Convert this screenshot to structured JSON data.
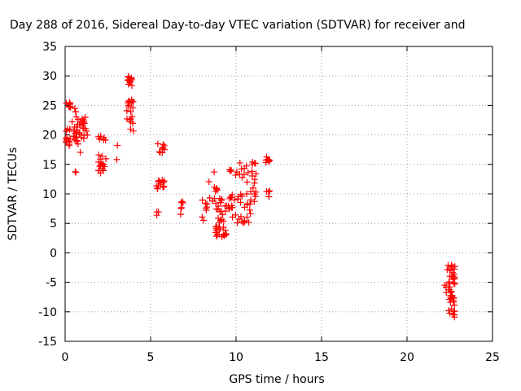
{
  "chart_data": {
    "type": "scatter",
    "title": "Day 288 of 2016, Sidereal Day-to-day VTEC variation (SDTVAR) for receiver and",
    "xlabel": "GPS time / hours",
    "ylabel": "SDTVAR / TECUs",
    "xlim": [
      0,
      25
    ],
    "ylim": [
      -15,
      35
    ],
    "x_ticks": [
      "0",
      "5",
      "10",
      "15",
      "20",
      "25"
    ],
    "y_ticks": [
      "-15",
      "-10",
      "-5",
      "0",
      "5",
      "10",
      "15",
      "20",
      "25",
      "30",
      "35"
    ],
    "grid": true,
    "marker": "plus",
    "series": [
      {
        "color": "#ff0000",
        "clusters": [
          {
            "x": [
              0.0,
              0.4
            ],
            "y": [
              24.5,
              25.5
            ],
            "n": 8
          },
          {
            "x": [
              0.0,
              0.3
            ],
            "y": [
              17.5,
              21.5
            ],
            "n": 14
          },
          {
            "x": [
              0.4,
              0.8
            ],
            "y": [
              19.0,
              24.8
            ],
            "n": 16
          },
          {
            "x": [
              0.5,
              0.7
            ],
            "y": [
              13.5,
              14.0
            ],
            "n": 2
          },
          {
            "x": [
              0.7,
              1.3
            ],
            "y": [
              17.0,
              23.0
            ],
            "n": 26
          },
          {
            "x": [
              1.9,
              2.4
            ],
            "y": [
              13.5,
              17.0
            ],
            "n": 16
          },
          {
            "x": [
              1.9,
              2.4
            ],
            "y": [
              18.8,
              19.8
            ],
            "n": 6
          },
          {
            "x": [
              3.0,
              3.1
            ],
            "y": [
              15.0,
              18.3
            ],
            "n": 2
          },
          {
            "x": [
              3.6,
              4.0
            ],
            "y": [
              28.3,
              30.3
            ],
            "n": 12
          },
          {
            "x": [
              3.6,
              4.0
            ],
            "y": [
              20.5,
              26.0
            ],
            "n": 20
          },
          {
            "x": [
              5.3,
              5.6
            ],
            "y": [
              6.3,
              7.0
            ],
            "n": 3
          },
          {
            "x": [
              5.3,
              5.9
            ],
            "y": [
              10.8,
              12.5
            ],
            "n": 14
          },
          {
            "x": [
              5.4,
              5.9
            ],
            "y": [
              16.8,
              18.5
            ],
            "n": 10
          },
          {
            "x": [
              6.7,
              6.9
            ],
            "y": [
              5.3,
              10.0
            ],
            "n": 6
          },
          {
            "x": [
              8.0,
              8.3
            ],
            "y": [
              5.5,
              9.0
            ],
            "n": 8
          },
          {
            "x": [
              8.4,
              8.9
            ],
            "y": [
              8.5,
              13.8
            ],
            "n": 10
          },
          {
            "x": [
              8.8,
              9.5
            ],
            "y": [
              2.5,
              9.5
            ],
            "n": 36
          },
          {
            "x": [
              9.5,
              9.8
            ],
            "y": [
              5.5,
              10.0
            ],
            "n": 12
          },
          {
            "x": [
              9.6,
              9.8
            ],
            "y": [
              13.5,
              14.2
            ],
            "n": 3
          },
          {
            "x": [
              9.9,
              10.9
            ],
            "y": [
              5.0,
              15.5
            ],
            "n": 36
          },
          {
            "x": [
              10.9,
              11.2
            ],
            "y": [
              8.5,
              16.5
            ],
            "n": 14
          },
          {
            "x": [
              11.7,
              12.0
            ],
            "y": [
              9.5,
              10.5
            ],
            "n": 4
          },
          {
            "x": [
              11.7,
              12.0
            ],
            "y": [
              15.0,
              17.0
            ],
            "n": 8
          },
          {
            "x": [
              22.2,
              22.5
            ],
            "y": [
              -7.5,
              -1.0
            ],
            "n": 6
          },
          {
            "x": [
              22.4,
              22.8
            ],
            "y": [
              -11.0,
              -2.0
            ],
            "n": 46
          }
        ]
      }
    ]
  }
}
